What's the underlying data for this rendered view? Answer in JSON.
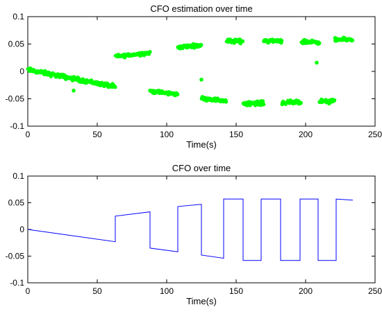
{
  "chart_data": [
    {
      "type": "scatter",
      "title": "CFO estimation over time",
      "xlabel": "Time(s)",
      "ylabel": "",
      "xlim": [
        0,
        250
      ],
      "ylim": [
        -0.1,
        0.1
      ],
      "xticks": [
        0,
        50,
        100,
        150,
        200,
        250
      ],
      "yticks": [
        -0.1,
        -0.05,
        0,
        0.05,
        0.1
      ],
      "ytick_labels": [
        "-0.1",
        "-0.05",
        "0",
        "0.05",
        "0.1"
      ],
      "grid": false,
      "marker_color": "#00ff00",
      "segments": [
        {
          "x": [
            0,
            63
          ],
          "y": [
            0.003,
            -0.028
          ],
          "spread": 0.006
        },
        {
          "x": [
            63,
            88
          ],
          "y": [
            0.027,
            0.034
          ],
          "spread": 0.005
        },
        {
          "x": [
            88,
            108
          ],
          "y": [
            -0.036,
            -0.042
          ],
          "spread": 0.005
        },
        {
          "x": [
            108,
            125
          ],
          "y": [
            0.044,
            0.048
          ],
          "spread": 0.005
        },
        {
          "x": [
            125,
            143
          ],
          "y": [
            -0.049,
            -0.054
          ],
          "spread": 0.005
        },
        {
          "x": [
            143,
            155
          ],
          "y": [
            0.055,
            0.055
          ],
          "spread": 0.006
        },
        {
          "x": [
            155,
            170
          ],
          "y": [
            -0.058,
            -0.058
          ],
          "spread": 0.006
        },
        {
          "x": [
            170,
            183
          ],
          "y": [
            0.056,
            0.056
          ],
          "spread": 0.006
        },
        {
          "x": [
            183,
            197
          ],
          "y": [
            -0.057,
            -0.057
          ],
          "spread": 0.006
        },
        {
          "x": [
            197,
            210
          ],
          "y": [
            0.054,
            0.054
          ],
          "spread": 0.006
        },
        {
          "x": [
            210,
            221
          ],
          "y": [
            -0.055,
            -0.055
          ],
          "spread": 0.006
        },
        {
          "x": [
            221,
            234
          ],
          "y": [
            0.058,
            0.058
          ],
          "spread": 0.005
        }
      ],
      "outliers": [
        {
          "x": 125,
          "y": -0.015
        },
        {
          "x": 208,
          "y": 0.016
        },
        {
          "x": 33,
          "y": -0.035
        }
      ]
    },
    {
      "type": "line",
      "title": "CFO over time",
      "xlabel": "Time(s)",
      "ylabel": "",
      "xlim": [
        0,
        250
      ],
      "ylim": [
        -0.1,
        0.1
      ],
      "xticks": [
        0,
        50,
        100,
        150,
        200,
        250
      ],
      "yticks": [
        -0.1,
        -0.05,
        0,
        0.05,
        0.1
      ],
      "ytick_labels": [
        "-0.1",
        "-0.05",
        "0",
        "0.05",
        "0.1"
      ],
      "grid": false,
      "line_color": "#0000ff",
      "points": [
        [
          0,
          0.0
        ],
        [
          63,
          -0.023
        ],
        [
          63,
          0.025
        ],
        [
          88,
          0.033
        ],
        [
          88,
          -0.035
        ],
        [
          108,
          -0.042
        ],
        [
          108,
          0.043
        ],
        [
          125,
          0.047
        ],
        [
          125,
          -0.048
        ],
        [
          141,
          -0.054
        ],
        [
          141,
          0.057
        ],
        [
          155,
          0.057
        ],
        [
          155,
          -0.058
        ],
        [
          168,
          -0.058
        ],
        [
          168,
          0.057
        ],
        [
          182,
          0.057
        ],
        [
          182,
          -0.058
        ],
        [
          196,
          -0.058
        ],
        [
          196,
          0.057
        ],
        [
          209,
          0.057
        ],
        [
          209,
          -0.058
        ],
        [
          222,
          -0.058
        ],
        [
          222,
          0.057
        ],
        [
          234,
          0.055
        ]
      ]
    }
  ]
}
